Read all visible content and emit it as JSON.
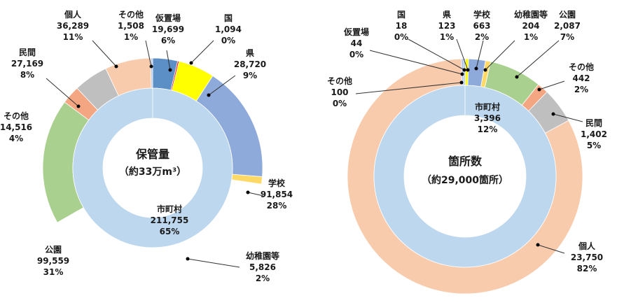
{
  "chart_data": [
    {
      "type": "pie",
      "variant": "donut-nested",
      "center_title": "保管量",
      "center_subtitle": "（約33万m³）",
      "inner_ring": [
        {
          "name": "市町村",
          "value": 211755,
          "percent": "65%",
          "color": "#bdd7ee"
        }
      ],
      "outer_ring": [
        {
          "name": "仮置場",
          "value": 19699,
          "value_label": "19,699",
          "percent": "6%",
          "color": "#5b8fc6"
        },
        {
          "name": "国",
          "value": 1094,
          "value_label": "1,094",
          "percent": "0%",
          "color": "#ff0000"
        },
        {
          "name": "県",
          "value": 28720,
          "value_label": "28,720",
          "percent": "9%",
          "color": "#ffff00"
        },
        {
          "name": "学校",
          "value": 91854,
          "value_label": "91,854",
          "percent": "28%",
          "color": "#8eaadb"
        },
        {
          "name": "幼稚園等",
          "value": 5826,
          "value_label": "5,826",
          "percent": "2%",
          "color": "#ffd966"
        },
        {
          "name": "市町村",
          "value": 211755,
          "value_label": "211,755",
          "percent": "65%",
          "color": null
        },
        {
          "name": "公園",
          "value": 99559,
          "value_label": "99,559",
          "percent": "31%",
          "color": "#a9d08e"
        },
        {
          "name": "その他",
          "value": 14516,
          "value_label": "14,516",
          "percent": "4%",
          "color": "#f4a582"
        },
        {
          "name": "民間",
          "value": 27169,
          "value_label": "27,169",
          "percent": "8%",
          "color": "#bfbfbf"
        },
        {
          "name": "個人",
          "value": 36289,
          "value_label": "36,289",
          "percent": "11%",
          "color": "#f8cbad"
        },
        {
          "name": "その他",
          "value": 1508,
          "value_label": "1,508",
          "percent": "1%",
          "color": "#b4c7e7"
        }
      ]
    },
    {
      "type": "pie",
      "variant": "donut-nested",
      "center_title": "箇所数",
      "center_subtitle": "（約29,000箇所）",
      "inner_ring": [
        {
          "name": "市町村",
          "value": 3396,
          "percent": "12%",
          "color": "#bdd7ee"
        }
      ],
      "outer_ring": [
        {
          "name": "国",
          "value": 18,
          "value_label": "18",
          "percent": "0%",
          "color": "#ff0000"
        },
        {
          "name": "県",
          "value": 123,
          "value_label": "123",
          "percent": "1%",
          "color": "#ffff00"
        },
        {
          "name": "学校",
          "value": 663,
          "value_label": "663",
          "percent": "2%",
          "color": "#8eaadb"
        },
        {
          "name": "幼稚園等",
          "value": 204,
          "value_label": "204",
          "percent": "1%",
          "color": "#ffd966"
        },
        {
          "name": "公園",
          "value": 2087,
          "value_label": "2,087",
          "percent": "7%",
          "color": "#a9d08e"
        },
        {
          "name": "その他",
          "value": 442,
          "value_label": "442",
          "percent": "2%",
          "color": "#f4a582"
        },
        {
          "name": "民間",
          "value": 1402,
          "value_label": "1,402",
          "percent": "5%",
          "color": "#bfbfbf"
        },
        {
          "name": "個人",
          "value": 23750,
          "value_label": "23,750",
          "percent": "82%",
          "color": "#f8cbad"
        },
        {
          "name": "その他",
          "value": 100,
          "value_label": "100",
          "percent": "0%",
          "color": "#b4c7e7"
        },
        {
          "name": "仮置場",
          "value": 44,
          "value_label": "44",
          "percent": "0%",
          "color": "#5b8fc6"
        }
      ]
    }
  ]
}
